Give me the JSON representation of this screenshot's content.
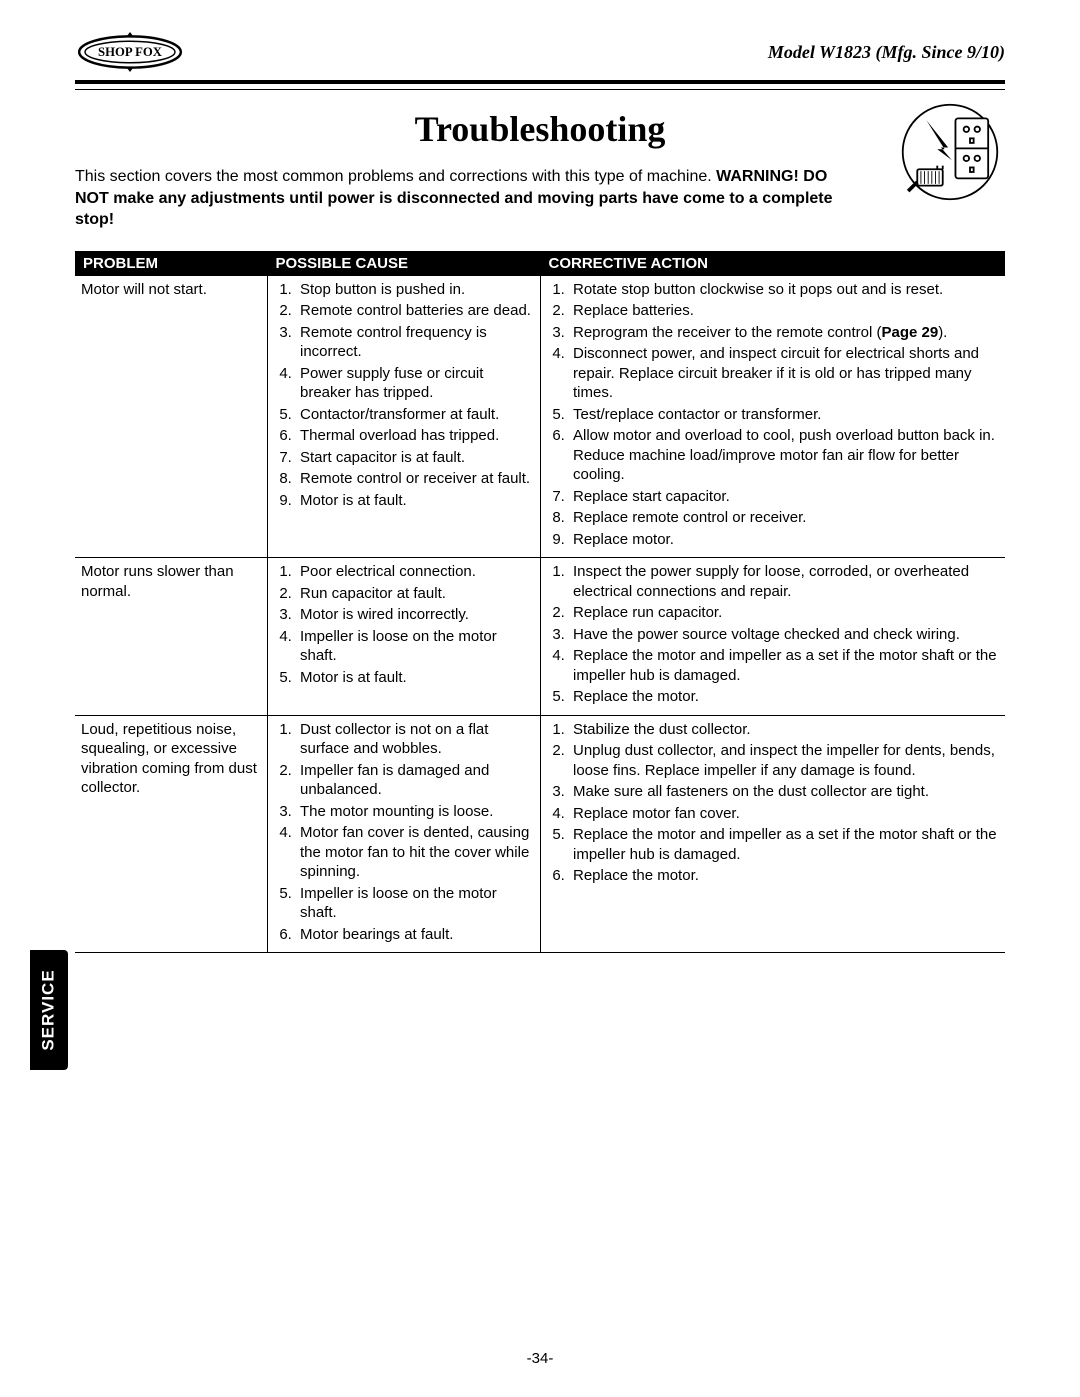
{
  "header": {
    "logo_text": "SHOP FOX",
    "model": "Model W1823 (Mfg. Since 9/10)"
  },
  "title": "Troubleshooting",
  "intro": {
    "lead": "This section covers the most common problems and corrections with this type of machine. ",
    "warn": "WARNING! DO NOT make any adjustments until power is disconnected and moving parts have come to a complete stop!"
  },
  "side_tab": "Service",
  "page_number": "-34-",
  "table": {
    "headers": {
      "problem": "Problem",
      "cause": "Possible Cause",
      "action": "Corrective Action"
    },
    "rows": [
      {
        "problem": "Motor will not start.",
        "causes": [
          "Stop button is pushed in.",
          "Remote control batteries are dead.",
          "Remote control frequency is incorrect.",
          "Power supply fuse or circuit breaker has tripped.",
          "Contactor/transformer at fault.",
          "Thermal overload has tripped.",
          "Start capacitor is at fault.",
          "Remote control or receiver at fault.",
          "Motor is at fault."
        ],
        "actions": [
          "Rotate stop button clockwise so it pops out and is reset.",
          "Replace batteries.",
          "Reprogram the receiver to the remote control (<b>Page 29</b>).",
          "Disconnect power, and inspect circuit for electrical shorts and repair. Replace circuit breaker if it is old or has tripped many times.",
          "Test/replace contactor or transformer.",
          "Allow motor and overload to cool, push overload button back in. Reduce machine load/improve motor fan air flow for better cooling.",
          "Replace start capacitor.",
          "Replace remote control or receiver.",
          "Replace motor."
        ]
      },
      {
        "problem": "Motor runs slower than normal.",
        "causes": [
          "Poor electrical connection.",
          "Run capacitor at fault.",
          "Motor is wired incorrectly.",
          "Impeller is loose on the motor shaft.",
          "Motor is at fault."
        ],
        "actions": [
          "Inspect the power supply for loose, corroded, or overheated electrical connections and repair.",
          "Replace run capacitor.",
          "Have the power source voltage checked and check wiring.",
          "Replace the motor and impeller as a set if the motor shaft or the impeller hub is damaged.",
          "Replace the motor."
        ]
      },
      {
        "problem": "Loud, repetitious noise, squealing, or excessive vibration coming from dust collector.",
        "causes": [
          "Dust collector is not on a flat surface and wobbles.",
          "Impeller fan is damaged and unbalanced.",
          "The motor mounting is loose.",
          "Motor fan cover is dented, causing the motor fan to hit the cover while spinning.",
          "Impeller is loose on the motor shaft.",
          "Motor bearings at fault."
        ],
        "actions": [
          "Stabilize the dust collector.",
          "Unplug dust collector, and inspect the impeller for dents, bends, loose fins. Replace impeller if any damage is found.",
          "Make sure all fasteners on the dust collector are tight.",
          "Replace motor fan cover.",
          "Replace the motor and impeller as a set if the motor shaft or the impeller hub is damaged.",
          "Replace the motor."
        ]
      }
    ]
  }
}
